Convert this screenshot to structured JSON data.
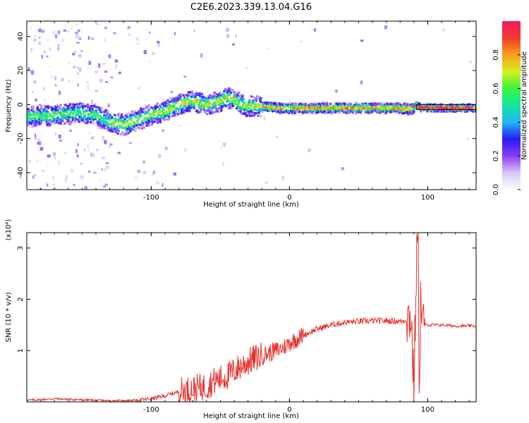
{
  "figure": {
    "title": "C2E6.2023.339.13.04.G16"
  },
  "colors": {
    "snr_line": "#e8302c",
    "track": "#000000",
    "colormap": [
      "#ffffff",
      "#d9c6f7",
      "#8a3cf5",
      "#2b1bf0",
      "#1fb7f5",
      "#11e7a0",
      "#3bf43b",
      "#d8f01c",
      "#f6a01a",
      "#f23a2a",
      "#f01a66"
    ]
  },
  "chart_data": [
    {
      "type": "heatmap",
      "title": "C2E6.2023.339.13.04.G16",
      "xlabel": "Height of straight line (km)",
      "ylabel": "Frequency (Hz)",
      "xlim": [
        -190,
        135
      ],
      "ylim": [
        -50,
        49
      ],
      "xticks": [
        -100,
        0,
        100
      ],
      "yticks": [
        -40,
        -20,
        0,
        20,
        40
      ],
      "grid": false,
      "colorbar": {
        "label": "Normalized spectral amplitude",
        "range": [
          0.0,
          1.0
        ],
        "ticks": [
          0.0,
          0.2,
          0.4,
          0.6,
          0.8
        ]
      },
      "ridge": {
        "x": [
          -185,
          -170,
          -155,
          -140,
          -130,
          -120,
          -110,
          -100,
          -90,
          -80,
          -70,
          -60,
          -50,
          -45,
          -40,
          -35,
          -30,
          -20,
          -10,
          0,
          10,
          30,
          50,
          70,
          80,
          88,
          92,
          95,
          110,
          135
        ],
        "y": [
          -7,
          -6,
          -5,
          -6,
          -10,
          -12,
          -9,
          -6,
          -4,
          0,
          2,
          0,
          2,
          4,
          3,
          0,
          -1,
          -1,
          -2,
          -2,
          -2,
          -2,
          -2,
          -2,
          -2,
          -3,
          0,
          -2,
          -2,
          -2
        ]
      },
      "track_band": {
        "x": [
          92,
          135
        ],
        "y_low": -3,
        "y_high": 0
      }
    },
    {
      "type": "line",
      "title": "",
      "xlabel": "Height of straight line (km)",
      "ylabel": "SNR (10 * v/v)",
      "y_multiplier": "(x10⁴)",
      "xlim": [
        -190,
        135
      ],
      "ylim": [
        0,
        3.3
      ],
      "xticks": [
        -100,
        0,
        100
      ],
      "yticks": [
        1,
        2,
        3
      ],
      "grid": false,
      "series": [
        {
          "x": [
            -190,
            -170,
            -150,
            -130,
            -110,
            -100,
            -90,
            -80,
            -70,
            -60,
            -55,
            -50,
            -45,
            -40,
            -35,
            -30,
            -25,
            -20,
            -15,
            -10,
            -5,
            0,
            10,
            20,
            30,
            40,
            50,
            60,
            70,
            80,
            85,
            88,
            90,
            92,
            93,
            94,
            95,
            96,
            100,
            110,
            120,
            135
          ],
          "y": [
            0.03,
            0.06,
            0.04,
            0.02,
            0.03,
            0.06,
            0.12,
            0.2,
            0.25,
            0.3,
            0.4,
            0.45,
            0.5,
            0.6,
            0.7,
            0.78,
            0.85,
            0.9,
            0.95,
            1.0,
            1.05,
            1.15,
            1.3,
            1.42,
            1.5,
            1.55,
            1.57,
            1.58,
            1.58,
            1.57,
            1.6,
            1.7,
            0.3,
            2.8,
            3.25,
            0.2,
            2.2,
            1.5,
            1.5,
            1.5,
            1.48,
            1.48
          ]
        }
      ]
    }
  ]
}
